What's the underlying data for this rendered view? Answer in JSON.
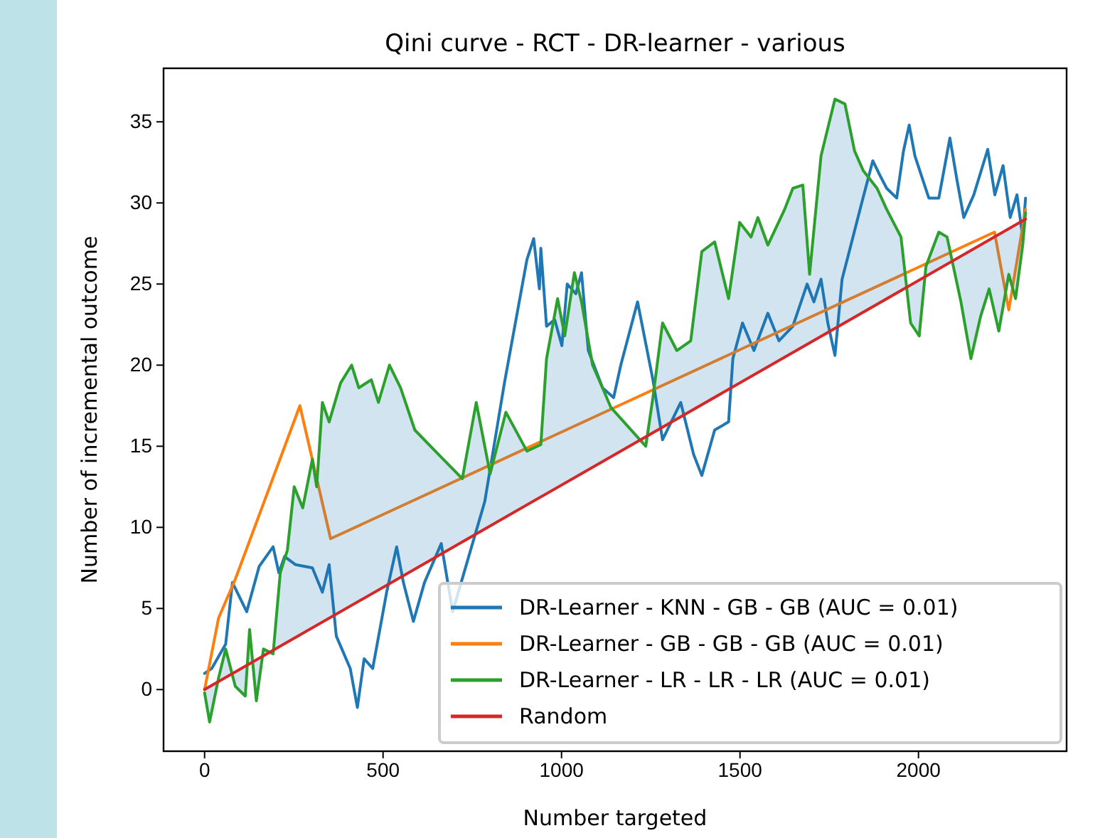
{
  "chart_data": {
    "type": "line",
    "title": "Qini curve - RCT - DR-learner - various",
    "xlabel": "Number targeted",
    "ylabel": "Number of incremental outcome",
    "xlim": [
      -115,
      2415
    ],
    "ylim": [
      -3.8,
      38.3
    ],
    "xticks": [
      0,
      500,
      1000,
      1500,
      2000
    ],
    "yticks": [
      0,
      5,
      10,
      15,
      20,
      25,
      30,
      35
    ],
    "grid": false,
    "legend": "bottom right",
    "line_style": "solid",
    "series": [
      {
        "name": "DR-Learner - KNN - GB - GB (AUC = 0.01)",
        "color": "#1f77b4",
        "x": [
          0,
          20,
          59,
          78,
          118,
          153,
          192,
          208,
          224,
          255,
          302,
          330,
          349,
          369,
          408,
          428,
          447,
          471,
          510,
          538,
          557,
          585,
          616,
          663,
          695,
          785,
          840,
          903,
          922,
          938,
          942,
          958,
          981,
          1001,
          1016,
          1040,
          1056,
          1075,
          1115,
          1146,
          1166,
          1213,
          1256,
          1283,
          1334,
          1370,
          1393,
          1429,
          1468,
          1480,
          1507,
          1539,
          1578,
          1609,
          1648,
          1688,
          1707,
          1727,
          1746,
          1766,
          1786,
          1813,
          1841,
          1872,
          1892,
          1911,
          1939,
          1958,
          1974,
          1990,
          2029,
          2057,
          2088,
          2108,
          2127,
          2155,
          2194,
          2214,
          2237,
          2257,
          2276,
          2292,
          2300
        ],
        "values": [
          1.0,
          1.3,
          2.8,
          6.6,
          4.8,
          7.6,
          8.8,
          7.2,
          8.2,
          7.7,
          7.5,
          6.0,
          7.7,
          3.3,
          1.3,
          -1.1,
          1.9,
          1.3,
          6.0,
          8.8,
          6.6,
          4.2,
          6.6,
          9.0,
          4.8,
          11.6,
          18.9,
          26.5,
          27.8,
          24.7,
          27.2,
          22.4,
          22.8,
          21.2,
          25.0,
          24.4,
          25.7,
          20.9,
          18.6,
          18.0,
          20.0,
          23.9,
          19.1,
          15.4,
          17.7,
          14.5,
          13.2,
          16.0,
          16.5,
          20.4,
          22.6,
          20.9,
          23.2,
          21.5,
          22.4,
          25.0,
          23.9,
          25.3,
          22.6,
          20.6,
          25.3,
          27.6,
          30.0,
          32.6,
          31.7,
          30.9,
          30.3,
          33.2,
          34.8,
          32.9,
          30.3,
          30.3,
          34.0,
          31.4,
          29.1,
          30.5,
          33.3,
          30.5,
          32.3,
          29.1,
          30.5,
          27.9,
          30.3
        ]
      },
      {
        "name": "DR-Learner - GB - GB - GB (AUC = 0.01)",
        "color": "#ff7f0e",
        "x": [
          0,
          39,
          86,
          267,
          353,
          2213,
          2253,
          2300
        ],
        "values": [
          0,
          4.4,
          6.8,
          17.5,
          9.3,
          28.2,
          23.4,
          29.6
        ]
      },
      {
        "name": "DR-Learner - LR - LR - LR (AUC = 0.01)",
        "color": "#2ca02c",
        "x": [
          0,
          14,
          39,
          59,
          86,
          114,
          126,
          145,
          165,
          192,
          212,
          232,
          251,
          275,
          302,
          314,
          330,
          349,
          381,
          412,
          432,
          467,
          487,
          518,
          549,
          589,
          655,
          722,
          761,
          800,
          844,
          903,
          942,
          958,
          989,
          1009,
          1036,
          1056,
          1087,
          1115,
          1138,
          1236,
          1256,
          1283,
          1323,
          1362,
          1393,
          1429,
          1468,
          1499,
          1531,
          1550,
          1578,
          1625,
          1648,
          1676,
          1695,
          1727,
          1766,
          1794,
          1821,
          1845,
          1884,
          1911,
          1951,
          1978,
          2002,
          2021,
          2057,
          2080,
          2119,
          2147,
          2174,
          2198,
          2225,
          2253,
          2272,
          2292,
          2300
        ],
        "values": [
          -0.2,
          -2.0,
          0.7,
          2.5,
          0.2,
          -0.4,
          3.7,
          -0.7,
          2.5,
          2.2,
          7.2,
          8.6,
          12.5,
          11.2,
          14.2,
          12.5,
          17.7,
          16.5,
          18.9,
          20.0,
          18.6,
          19.1,
          17.7,
          20.0,
          18.6,
          16.0,
          14.5,
          13.0,
          17.7,
          13.3,
          17.1,
          14.7,
          15.1,
          20.4,
          24.1,
          21.8,
          25.7,
          23.9,
          20.0,
          18.6,
          17.4,
          15.0,
          18.0,
          22.6,
          20.9,
          21.5,
          27.0,
          27.6,
          24.1,
          28.8,
          27.9,
          29.1,
          27.4,
          29.6,
          30.9,
          31.1,
          25.6,
          32.9,
          36.4,
          36.1,
          33.2,
          32.0,
          30.9,
          29.6,
          27.9,
          22.6,
          21.8,
          26.1,
          28.2,
          27.9,
          23.9,
          20.4,
          23.0,
          24.7,
          22.1,
          25.6,
          24.1,
          27.4,
          29.4
        ],
        "lower": [
          0,
          0.2,
          0.5,
          0.7,
          1.1,
          1.4,
          1.6,
          1.8,
          2.1,
          2.4,
          2.7,
          2.9,
          3.2,
          3.5,
          3.8,
          4.0,
          4.2,
          4.4,
          4.8,
          5.2,
          5.4,
          5.9,
          6.1,
          6.5,
          6.9,
          7.4,
          8.3,
          9.1,
          9.6,
          10.1,
          10.6,
          11.4,
          11.9,
          12.1,
          12.5,
          12.7,
          13.1,
          13.3,
          13.7,
          14.1,
          14.3,
          15.6,
          15.8,
          16.2,
          16.7,
          17.2,
          17.6,
          18.0,
          18.5,
          18.9,
          19.3,
          19.5,
          19.9,
          20.5,
          20.8,
          21.1,
          21.4,
          21.8,
          22.3,
          22.6,
          23.0,
          23.3,
          23.8,
          24.1,
          24.6,
          24.9,
          25.2,
          25.5,
          25.9,
          26.2,
          26.7,
          27.1,
          27.4,
          27.7,
          28.1,
          28.4,
          28.7,
          28.9,
          29.0
        ],
        "upper": [
          -0.2,
          -2.0,
          0.7,
          2.5,
          0.2,
          -0.4,
          3.7,
          -0.7,
          2.5,
          2.2,
          7.2,
          8.6,
          12.5,
          11.2,
          14.2,
          12.5,
          17.7,
          16.5,
          18.9,
          20.0,
          18.6,
          19.1,
          17.7,
          20.0,
          18.6,
          16.0,
          14.5,
          13.0,
          17.7,
          13.3,
          17.1,
          14.7,
          15.1,
          20.4,
          24.1,
          21.8,
          25.7,
          23.9,
          20.0,
          18.6,
          17.4,
          15.0,
          18.0,
          22.6,
          20.9,
          21.5,
          27.0,
          27.6,
          24.1,
          28.8,
          27.9,
          29.1,
          27.4,
          29.6,
          30.9,
          31.1,
          25.6,
          32.9,
          36.4,
          36.1,
          33.2,
          32.0,
          30.9,
          29.6,
          27.9,
          22.6,
          21.8,
          26.1,
          28.2,
          27.9,
          23.9,
          20.4,
          23.0,
          24.7,
          22.1,
          25.6,
          24.1,
          27.4,
          29.4
        ]
      },
      {
        "name": "Random",
        "color": "#d62728",
        "x": [
          0,
          2300
        ],
        "values": [
          0,
          29
        ]
      }
    ]
  }
}
